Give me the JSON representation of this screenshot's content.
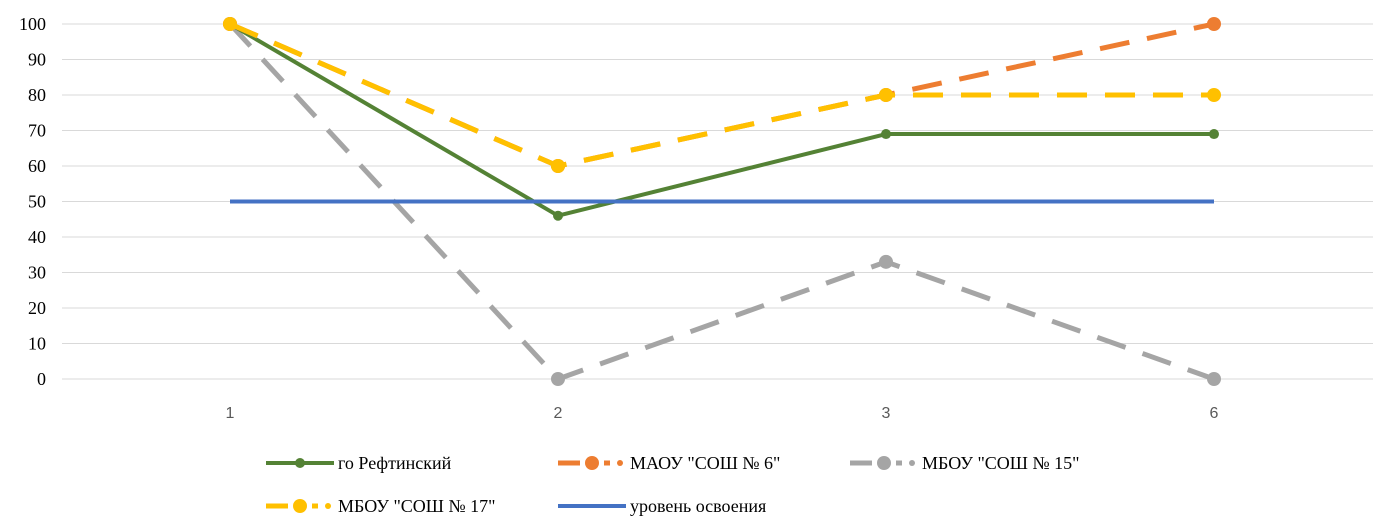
{
  "chart_data": {
    "type": "line",
    "categories": [
      "1",
      "2",
      "3",
      "6"
    ],
    "ylim": [
      0,
      100
    ],
    "yticks": [
      0,
      10,
      20,
      30,
      40,
      50,
      60,
      70,
      80,
      90,
      100
    ],
    "grid": true,
    "legend_position": "bottom",
    "title": "",
    "xlabel": "",
    "ylabel": "",
    "series": [
      {
        "name": "го Рефтинский",
        "values": [
          100,
          46,
          69,
          69
        ],
        "color": "#548235",
        "style": "solid",
        "marker": "small-circle"
      },
      {
        "name": "МАОУ \"СОШ № 6\"",
        "values": [
          100,
          60,
          80,
          100
        ],
        "color": "#ED7D31",
        "style": "dashed",
        "marker": "circle"
      },
      {
        "name": "МБОУ \"СОШ № 15\"",
        "values": [
          100,
          0,
          33,
          0
        ],
        "color": "#A5A5A5",
        "style": "dashed",
        "marker": "circle"
      },
      {
        "name": "МБОУ \"СОШ № 17\"",
        "values": [
          100,
          60,
          80,
          80
        ],
        "color": "#FFC000",
        "style": "dashed",
        "marker": "circle"
      },
      {
        "name": "уровень освоения",
        "values": [
          50,
          50,
          50,
          50
        ],
        "color": "#4472C4",
        "style": "solid",
        "marker": "none"
      }
    ]
  }
}
